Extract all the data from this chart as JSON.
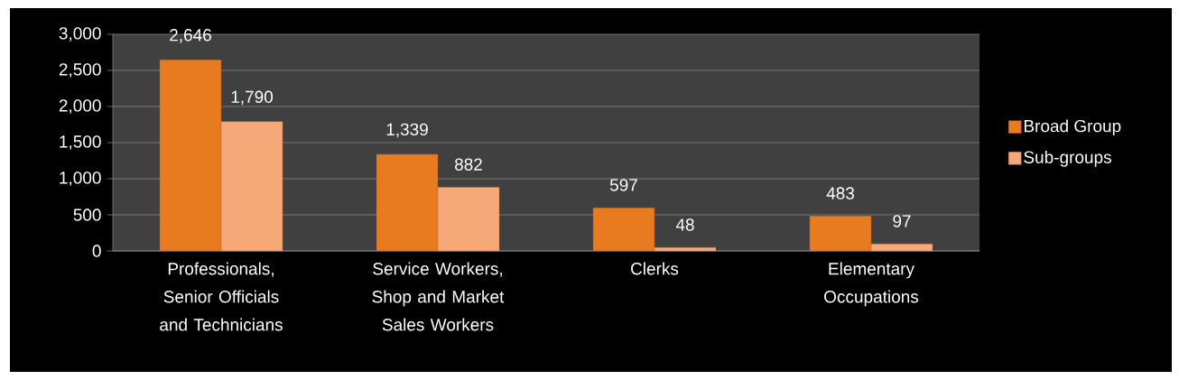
{
  "chart_data": {
    "type": "bar",
    "categories": [
      "Professionals, Senior Officials and Technicians",
      "Service Workers, Shop and Market Sales Workers",
      "Clerks",
      "Elementary Occupations"
    ],
    "series": [
      {
        "name": "Broad Group",
        "color": "#e87b20",
        "values": [
          2646,
          1339,
          597,
          483
        ],
        "value_labels": [
          "2,646",
          "1,339",
          "597",
          "483"
        ]
      },
      {
        "name": "Sub-groups",
        "color": "#f5a878",
        "values": [
          1790,
          882,
          48,
          97
        ],
        "value_labels": [
          "1,790",
          "882",
          "48",
          "97"
        ]
      }
    ],
    "ylim": [
      0,
      3000
    ],
    "yticks": [
      {
        "value": 0,
        "label": "0"
      },
      {
        "value": 500,
        "label": "500"
      },
      {
        "value": 1000,
        "label": "1,000"
      },
      {
        "value": 1500,
        "label": "1,500"
      },
      {
        "value": 2000,
        "label": "2,000"
      },
      {
        "value": 2500,
        "label": "2,500"
      },
      {
        "value": 3000,
        "label": "3,000"
      }
    ],
    "grid": "y",
    "legend": "right"
  }
}
